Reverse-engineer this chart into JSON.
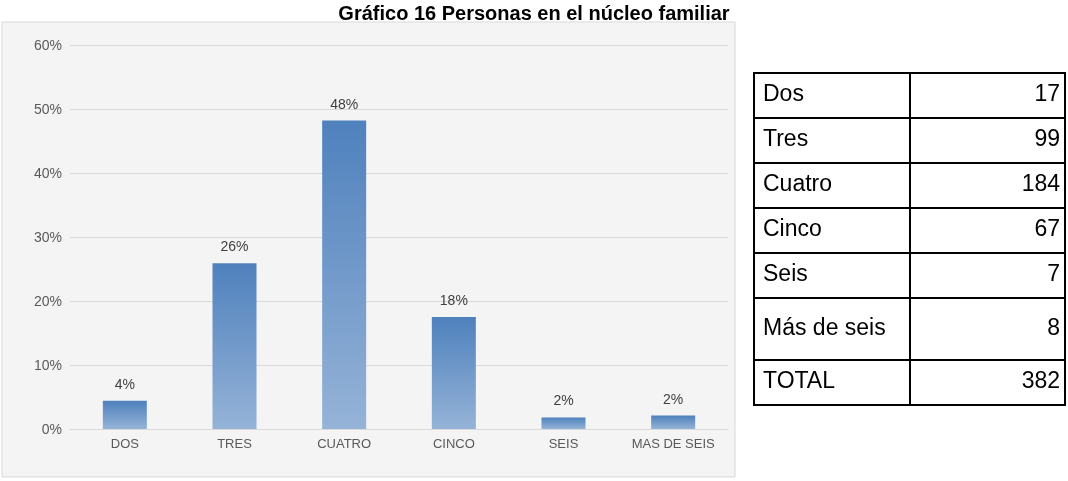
{
  "chart_data": [
    {
      "type": "bar",
      "title": "Gráfico 16 Personas en el núcleo familiar",
      "categories": [
        "DOS",
        "TRES",
        "CUATRO",
        "CINCO",
        "SEIS",
        "MAS DE SEIS"
      ],
      "values": [
        4.4,
        25.9,
        48.2,
        17.5,
        1.8,
        2.1
      ],
      "value_labels": [
        "4%",
        "26%",
        "48%",
        "18%",
        "2%",
        "2%"
      ],
      "color": "#4f81bd",
      "ylim": [
        0,
        60
      ],
      "yticks": [
        {
          "value": 0,
          "label": "0%"
        },
        {
          "value": 10,
          "label": "10%"
        },
        {
          "value": 20,
          "label": "20%"
        },
        {
          "value": 30,
          "label": "30%"
        },
        {
          "value": 40,
          "label": "40%"
        },
        {
          "value": 50,
          "label": "50%"
        },
        {
          "value": 60,
          "label": "60%"
        }
      ],
      "grid": "y"
    },
    {
      "type": "other",
      "categories": [
        "Dos",
        "Tres",
        "Cuatro",
        "Cinco",
        "Seis",
        "Más de seis",
        "TOTAL"
      ],
      "values": [
        17,
        99,
        184,
        67,
        7,
        8,
        382
      ],
      "data_labels": true
    }
  ]
}
